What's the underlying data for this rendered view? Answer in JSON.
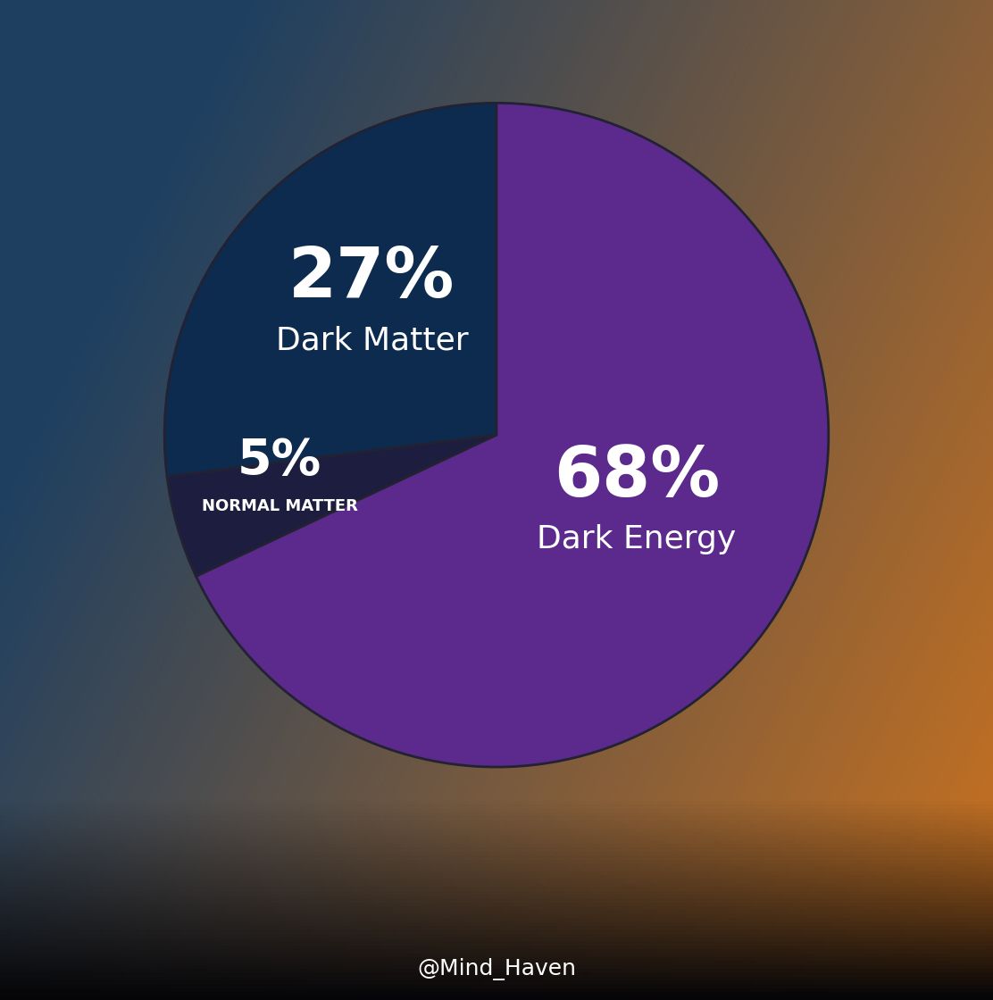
{
  "chart_data": {
    "type": "pie",
    "categories": [
      "Dark Matter",
      "NORMAL MATTER",
      "Dark Energy"
    ],
    "values": [
      27,
      5,
      68
    ],
    "value_labels": [
      "27%",
      "5%",
      "68%"
    ],
    "colors": [
      "#0d2b4e",
      "#1c1d3f",
      "#5b2a8c"
    ],
    "data_labels": true,
    "annotation": "@Mind_Haven"
  }
}
